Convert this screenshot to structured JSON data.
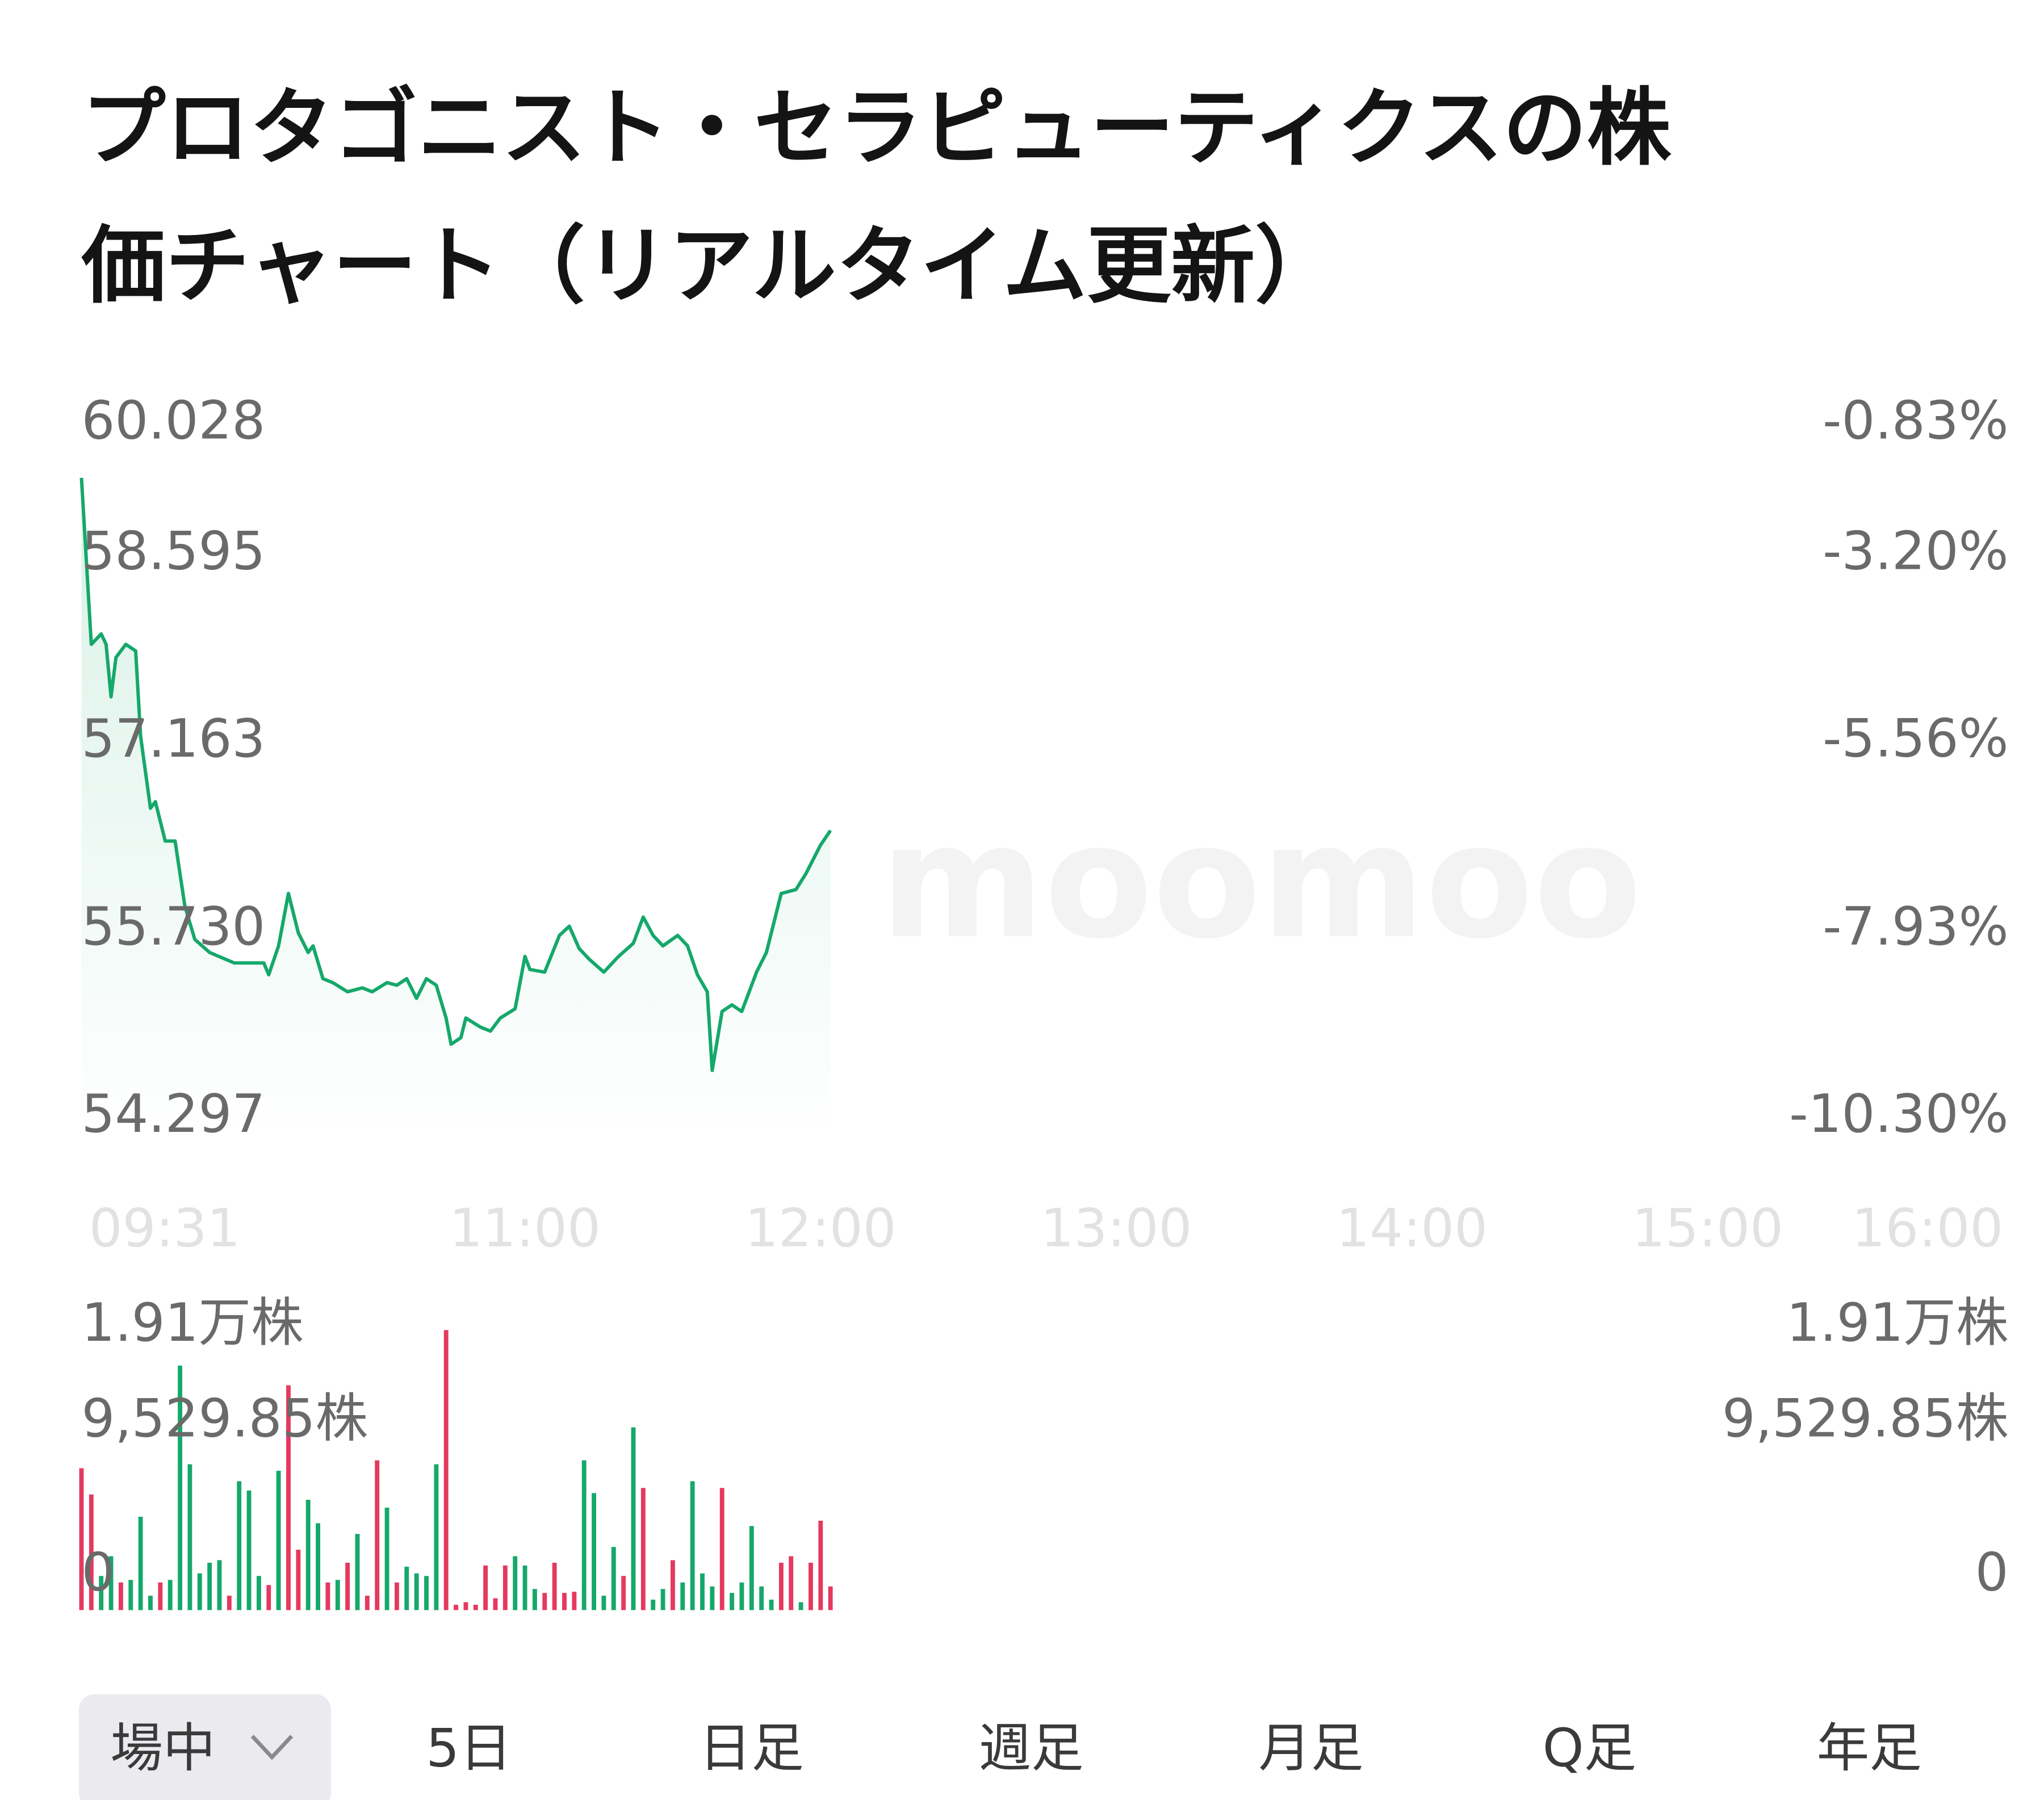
{
  "chart_data": {
    "type": "line",
    "title": [
      "プロタゴニスト・セラピューティクスの株",
      "価チャート（リアルタイム更新）"
    ],
    "watermark": "moomoo",
    "xlim": [
      570,
      960
    ],
    "xticks": [
      {
        "value": 571,
        "label": "09:31"
      },
      {
        "value": 660,
        "label": "11:00"
      },
      {
        "value": 720,
        "label": "12:00"
      },
      {
        "value": 780,
        "label": "13:00"
      },
      {
        "value": 840,
        "label": "14:00"
      },
      {
        "value": 900,
        "label": "15:00"
      },
      {
        "value": 960,
        "label": "16:00"
      }
    ],
    "ylim": [
      54.13,
      60.03
    ],
    "yticks": [
      60.028,
      58.595,
      57.163,
      {
        "value": 55.73,
        "label": "55.730"
      },
      54.297
    ],
    "y2lim": [
      -10.57,
      -0.83
    ],
    "y2ticks": [
      {
        "value": -0.83,
        "label": "-0.83%"
      },
      {
        "value": -3.2,
        "label": "-3.20%"
      },
      {
        "value": -5.56,
        "label": "-5.56%"
      },
      {
        "value": -7.93,
        "label": "-7.93%"
      },
      {
        "value": -10.3,
        "label": "-10.30%"
      }
    ],
    "series": [
      {
        "color": "#15a86b",
        "x": [
          570,
          572,
          574,
          575,
          576,
          577,
          579,
          581,
          582,
          584,
          585,
          587,
          589,
          591,
          593,
          596,
          601,
          607,
          608,
          610,
          612,
          614,
          616,
          617,
          619,
          621,
          624,
          627,
          629,
          632,
          634,
          636,
          638,
          640,
          642,
          644,
          645,
          647,
          648,
          651,
          653,
          655,
          658,
          660,
          661,
          664,
          667,
          669,
          671,
          673,
          676,
          679,
          682,
          684,
          686,
          688,
          691,
          693,
          695,
          697,
          698,
          700,
          702,
          704,
          707,
          709,
          712,
          715,
          717,
          720,
          722
        ],
        "values": [
          59.18,
          57.91,
          57.99,
          57.91,
          57.51,
          57.81,
          57.91,
          57.86,
          57.21,
          56.66,
          56.71,
          56.41,
          56.41,
          55.91,
          55.66,
          55.56,
          55.48,
          55.48,
          55.39,
          55.61,
          56.01,
          55.71,
          55.56,
          55.61,
          55.36,
          55.33,
          55.26,
          55.29,
          55.26,
          55.33,
          55.31,
          55.36,
          55.21,
          55.36,
          55.31,
          55.06,
          54.86,
          54.91,
          55.06,
          54.99,
          54.96,
          55.06,
          55.13,
          55.53,
          55.43,
          55.41,
          55.69,
          55.76,
          55.59,
          55.51,
          55.41,
          55.53,
          55.63,
          55.83,
          55.69,
          55.61,
          55.69,
          55.61,
          55.39,
          55.26,
          54.66,
          55.11,
          55.16,
          55.11,
          55.41,
          55.56,
          56.01,
          56.04,
          56.16,
          56.38,
          56.49
        ]
      }
    ],
    "volume": {
      "ylim": [
        0,
        19100
      ],
      "yticks": [
        {
          "value": 19100,
          "label": "1.91万株"
        },
        {
          "value": 9529.85,
          "label": "9,529.85株"
        },
        0
      ],
      "x": [
        570,
        572,
        574,
        576,
        578,
        580,
        582,
        584,
        586,
        588,
        590,
        592,
        594,
        596,
        598,
        600,
        602,
        604,
        606,
        608,
        610,
        612,
        614,
        616,
        618,
        620,
        622,
        624,
        626,
        628,
        630,
        632,
        634,
        636,
        638,
        640,
        642,
        644,
        646,
        648,
        650,
        652,
        654,
        656,
        658,
        660,
        662,
        664,
        666,
        668,
        670,
        672,
        674,
        676,
        678,
        680,
        682,
        684,
        686,
        688,
        690,
        692,
        694,
        696,
        698,
        700,
        702,
        704,
        706,
        708,
        710,
        712,
        714,
        716,
        718,
        720,
        722
      ],
      "values": [
        7190,
        5860,
        1730,
        2730,
        1400,
        1530,
        4730,
        730,
        1400,
        1530,
        12390,
        7390,
        1860,
        2400,
        2530,
        730,
        6530,
        6060,
        1730,
        1270,
        7060,
        11390,
        3060,
        5590,
        4400,
        1400,
        1530,
        2400,
        3860,
        730,
        7590,
        5190,
        1400,
        2200,
        1860,
        1730,
        7390,
        14190,
        270,
        400,
        270,
        2260,
        600,
        2260,
        2730,
        2260,
        1070,
        870,
        2400,
        870,
        930,
        7590,
        5930,
        730,
        3200,
        1730,
        9260,
        6190,
        530,
        1070,
        2530,
        1400,
        6530,
        1860,
        1200,
        6190,
        870,
        1400,
        4260,
        1200,
        530,
        2400,
        2730,
        400,
        2400,
        4530,
        1200
      ],
      "colors": [
        "#e5395f",
        "#e5395f",
        "#15a86b",
        "#15a86b",
        "#e5395f",
        "#15a86b",
        "#15a86b",
        "#15a86b",
        "#e5395f",
        "#15a86b",
        "#15a86b",
        "#15a86b",
        "#15a86b",
        "#15a86b",
        "#15a86b",
        "#e5395f",
        "#15a86b",
        "#15a86b",
        "#15a86b",
        "#e5395f",
        "#15a86b",
        "#e5395f",
        "#e5395f",
        "#15a86b",
        "#15a86b",
        "#e5395f",
        "#15a86b",
        "#e5395f",
        "#15a86b",
        "#e5395f",
        "#e5395f",
        "#15a86b",
        "#e5395f",
        "#15a86b",
        "#15a86b",
        "#15a86b",
        "#15a86b",
        "#e5395f",
        "#e5395f",
        "#e5395f",
        "#e5395f",
        "#e5395f",
        "#e5395f",
        "#e5395f",
        "#15a86b",
        "#15a86b",
        "#15a86b",
        "#e5395f",
        "#e5395f",
        "#e5395f",
        "#e5395f",
        "#15a86b",
        "#15a86b",
        "#15a86b",
        "#15a86b",
        "#e5395f",
        "#15a86b",
        "#e5395f",
        "#15a86b",
        "#15a86b",
        "#e5395f",
        "#15a86b",
        "#15a86b",
        "#15a86b",
        "#15a86b",
        "#e5395f",
        "#15a86b",
        "#15a86b",
        "#15a86b",
        "#15a86b",
        "#15a86b",
        "#e5395f",
        "#e5395f",
        "#15a86b",
        "#e5395f",
        "#e5395f",
        "#e5395f"
      ]
    },
    "tabs": [
      "場中",
      "5日",
      "日足",
      "週足",
      "月足",
      "Q足",
      "年足"
    ]
  }
}
